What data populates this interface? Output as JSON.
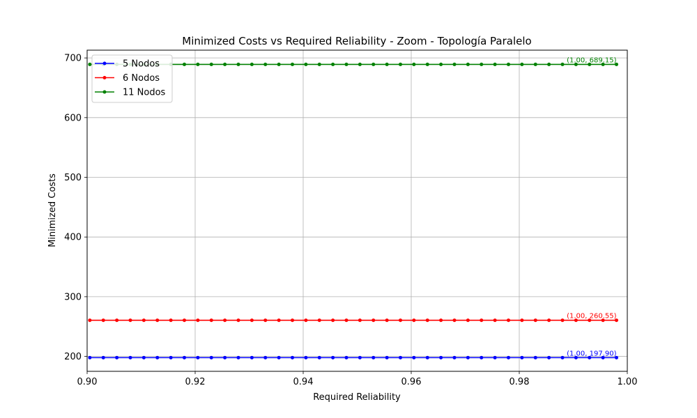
{
  "chart_data": {
    "type": "line",
    "title": "Minimized Costs vs Required Reliability - Zoom - Topología Paralelo",
    "xlabel": "Required Reliability",
    "ylabel": "Minimized Costs",
    "xlim": [
      0.9,
      1.0
    ],
    "ylim": [
      175,
      713
    ],
    "xticks": [
      "0.90",
      "0.92",
      "0.94",
      "0.96",
      "0.98",
      "1.00"
    ],
    "xtick_values": [
      0.9,
      0.92,
      0.94,
      0.96,
      0.98,
      1.0
    ],
    "yticks": [
      "200",
      "300",
      "400",
      "500",
      "600",
      "700"
    ],
    "ytick_values": [
      200,
      300,
      400,
      500,
      600,
      700
    ],
    "grid": true,
    "legend_position": "top-left",
    "x": {
      "start": 0.9005,
      "step": 0.0025,
      "count": 40
    },
    "series": [
      {
        "name": "5 Nodos",
        "color": "#0000ff",
        "value": 197.9,
        "annotation": "(1.00, 197.90)"
      },
      {
        "name": "6 Nodos",
        "color": "#ff0000",
        "value": 260.55,
        "annotation": "(1.00, 260.55)"
      },
      {
        "name": "11 Nodos",
        "color": "#008000",
        "value": 689.15,
        "annotation": "(1.00, 689.15)"
      }
    ]
  }
}
